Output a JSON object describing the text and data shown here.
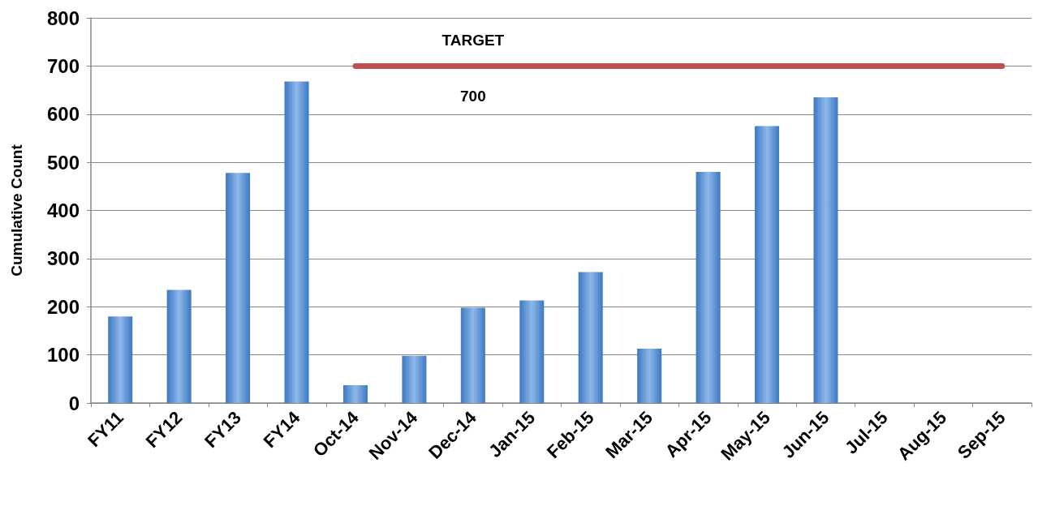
{
  "chart_data": {
    "type": "bar",
    "ylabel": "Cumulative Count",
    "categories": [
      "FY11",
      "FY12",
      "FY13",
      "FY14",
      "Oct-14",
      "Nov-14",
      "Dec-14",
      "Jan-15",
      "Feb-15",
      "Mar-15",
      "Apr-15",
      "May-15",
      "Jun-15",
      "Jul-15",
      "Aug-15",
      "Sep-15"
    ],
    "series": [
      {
        "color": "#3c78c3",
        "values": [
          180,
          235,
          478,
          668,
          37,
          98,
          198,
          213,
          272,
          113,
          480,
          575,
          635,
          null,
          null,
          null
        ]
      },
      {
        "type": "line",
        "name": "TARGET",
        "color": "#c0504d",
        "values": [
          null,
          null,
          null,
          null,
          700,
          700,
          700,
          700,
          700,
          700,
          700,
          700,
          700,
          700,
          700,
          700
        ],
        "value_labels": [
          null,
          null,
          null,
          null,
          null,
          null,
          "700",
          null,
          null,
          null,
          null,
          null,
          null,
          null,
          null,
          null
        ]
      }
    ],
    "ylim": [
      0,
      800
    ],
    "yticks": [
      0,
      100,
      200,
      300,
      400,
      500,
      600,
      700,
      800
    ],
    "grid": "y",
    "legend": false
  }
}
